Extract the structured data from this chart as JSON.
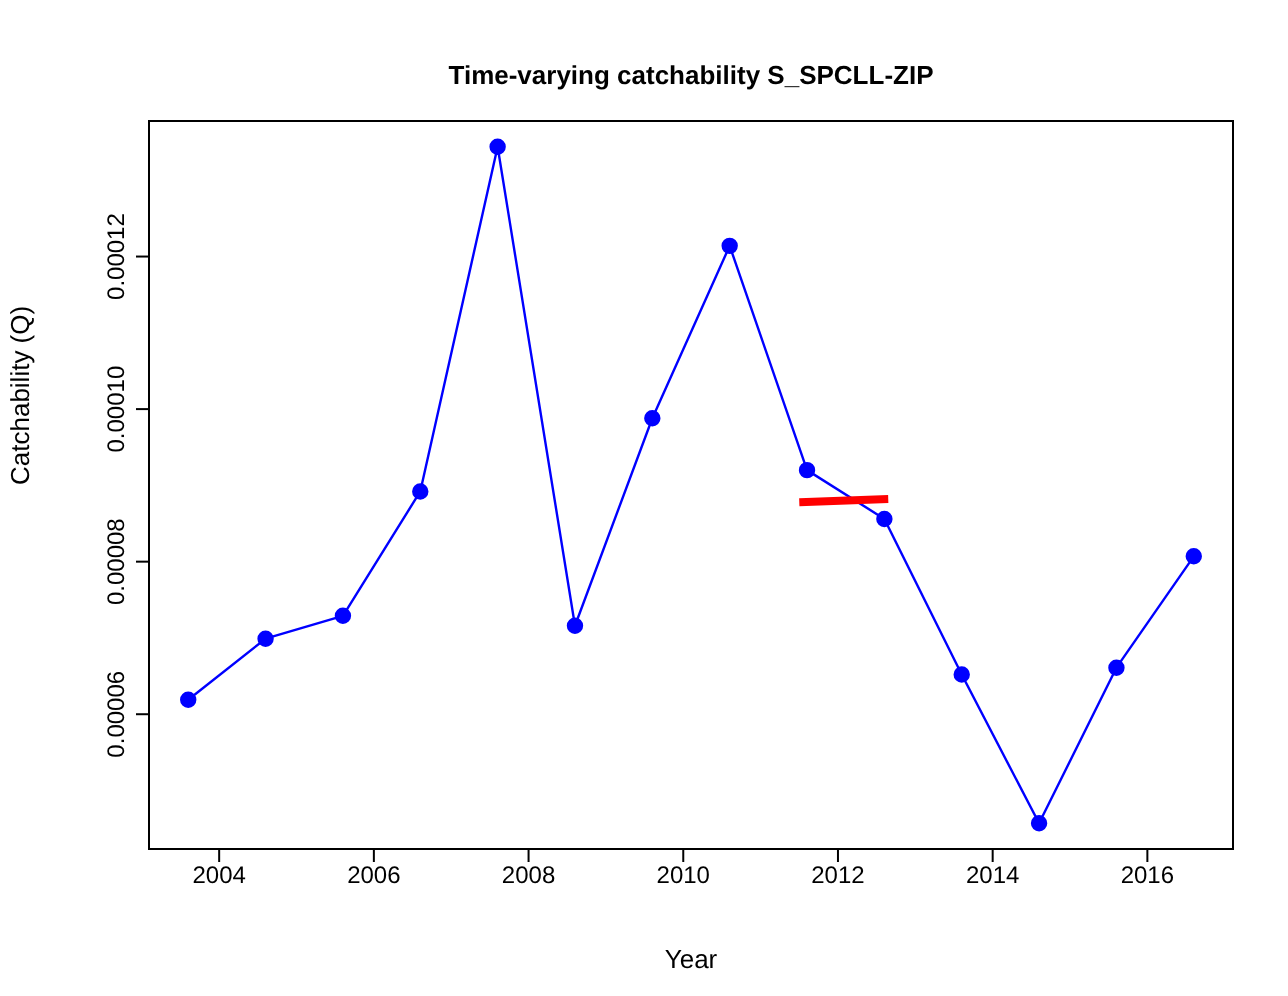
{
  "chart_data": {
    "type": "line",
    "title": "Time-varying catchability S_SPCLL-ZIP",
    "xlabel": "Year",
    "ylabel": "Catchability (Q)",
    "xlim": [
      2003.08,
      2017.12
    ],
    "xticks": [
      2004,
      2006,
      2008,
      2010,
      2012,
      2014,
      2016
    ],
    "ylim": [
      4.22e-05,
      0.0001379
    ],
    "yticks": [
      {
        "value": 6e-05,
        "label": "0.00006"
      },
      {
        "value": 8e-05,
        "label": "0.00008"
      },
      {
        "value": 0.0001,
        "label": "0.00010"
      },
      {
        "value": 0.00012,
        "label": "0.00012"
      }
    ],
    "grid": false,
    "legend": false,
    "series": [
      {
        "color": "#0000ff",
        "marker": "circle",
        "x": [
          2003.6,
          2004.6,
          2005.6,
          2006.6,
          2007.6,
          2008.6,
          2009.6,
          2010.6,
          2011.6,
          2012.6,
          2013.6,
          2014.6,
          2015.6,
          2016.6
        ],
        "values": [
          6.19e-05,
          6.99e-05,
          7.29e-05,
          8.92e-05,
          0.0001344,
          7.16e-05,
          9.88e-05,
          0.0001214,
          9.2e-05,
          8.56e-05,
          6.52e-05,
          4.57e-05,
          6.61e-05,
          8.07e-05
        ]
      },
      {
        "color": "#ff0000",
        "marker": "none",
        "x": [
          2011.5,
          2012.65
        ],
        "values": [
          8.78e-05,
          8.82e-05
        ]
      }
    ]
  }
}
